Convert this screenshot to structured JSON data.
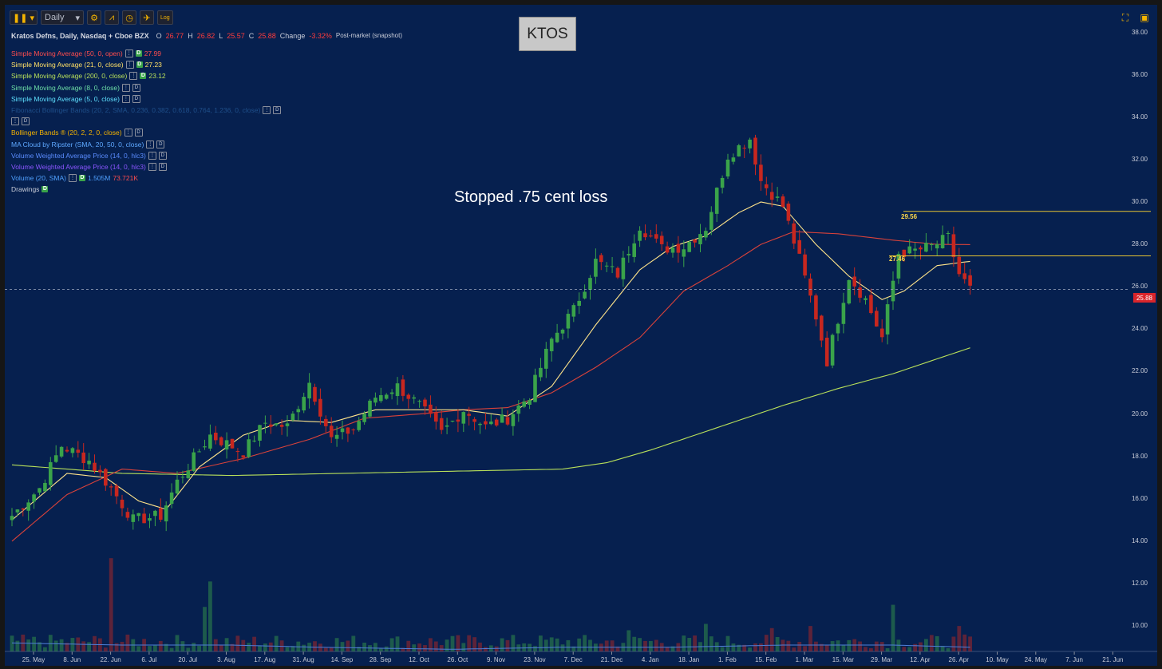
{
  "toolbar": {
    "period": "Daily",
    "dropdown_arrow": "▾",
    "log_label": "Log"
  },
  "chart_title": "KTOS",
  "header": {
    "name": "Kratos Defns, Daily, Nasdaq + Cboe BZX",
    "o_label": "O",
    "o_value": "26.77",
    "h_label": "H",
    "h_value": "26.82",
    "l_label": "L",
    "l_value": "25.57",
    "c_label": "C",
    "c_value": "25.88",
    "change_label": "Change",
    "change_value": "-3.32%",
    "session": "Post-market (snapshot)"
  },
  "indicators": [
    {
      "label": "Simple Moving Average (50, 0, open)",
      "color": "#ff4d4d",
      "value": "27.99",
      "value_color": "#ff4d4d",
      "d_on": true
    },
    {
      "label": "Simple Moving Average (21, 0, close)",
      "color": "#ffe066",
      "value": "27.23",
      "value_color": "#ffe066",
      "d_on": true
    },
    {
      "label": "Simple Moving Average (200, 0, close)",
      "color": "#b8e05a",
      "value": "23.12",
      "value_color": "#b8e05a",
      "d_on": true
    },
    {
      "label": "Simple Moving Average (8, 0, close)",
      "color": "#6ee0a8",
      "value": "",
      "value_color": "#6ee0a8",
      "d_on": false
    },
    {
      "label": "Simple Moving Average (5, 0, close)",
      "color": "#5ee0ff",
      "value": "",
      "value_color": "#5ee0ff",
      "d_on": false
    },
    {
      "label": "Fibonacci Bollinger Bands (20, 2, SMA, 0.236, 0.382, 0.618, 0.764, 1.236, 0, close)",
      "color": "#1f4f8a",
      "value": "",
      "value_color": "#1f4f8a",
      "d_on": false
    },
    {
      "label": "",
      "color": "#1f4f8a",
      "value": "",
      "value_color": "#1f4f8a",
      "d_on": false
    },
    {
      "label": "Bollinger Bands ® (20, 2, 2, 0, close)",
      "color": "#f5b400",
      "value": "",
      "value_color": "#f5b400",
      "d_on": false
    },
    {
      "label": "MA Cloud by Ripster (SMA, 20, 50, 0, close)",
      "color": "#5ea8ff",
      "value": "",
      "value_color": "#5ea8ff",
      "d_on": false
    },
    {
      "label": "Volume Weighted Average Price (14, 0, hlc3)",
      "color": "#5a8cff",
      "value": "",
      "value_color": "#5a8cff",
      "d_on": false
    },
    {
      "label": "Volume Weighted Average Price (14, 0, hlc3)",
      "color": "#8a55ff",
      "value": "",
      "value_color": "#8a55ff",
      "d_on": false
    },
    {
      "label": "Volume (20, SMA)",
      "color": "#4fa0ff",
      "value": "1.505M",
      "value_color": "#4fa0ff",
      "value2": "73.721K",
      "value2_color": "#ff4d4d",
      "d_on": true
    },
    {
      "label": "Drawings",
      "color": "#c8ccd8",
      "value": "",
      "value_color": "#c8ccd8",
      "d_on": true,
      "drawings": true
    }
  ],
  "annotation": "Stopped .75 cent loss",
  "current_price": "25.88",
  "levels": [
    {
      "value": 29.56,
      "label": "29.56"
    },
    {
      "value": 27.46,
      "label": "27.46"
    }
  ],
  "colors": {
    "background": "#06204f",
    "up": "#3aa34a",
    "down": "#c7271f",
    "sma50": "#d9423a",
    "sma21": "#ffe48a",
    "sma200": "#b8e05a",
    "level": "#e8c432",
    "vol_avg": "#4f7fd8"
  },
  "chart_data": {
    "type": "candlestick",
    "title": "KTOS",
    "y_ticks": [
      "10.00",
      "12.00",
      "14.00",
      "16.00",
      "18.00",
      "20.00",
      "22.00",
      "24.00",
      "26.00",
      "28.00",
      "30.00",
      "32.00",
      "34.00",
      "36.00",
      "38.00"
    ],
    "x_ticks": [
      "25. May",
      "8. Jun",
      "22. Jun",
      "6. Jul",
      "20. Jul",
      "3. Aug",
      "17. Aug",
      "31. Aug",
      "14. Sep",
      "28. Sep",
      "12. Oct",
      "26. Oct",
      "9. Nov",
      "23. Nov",
      "7. Dec",
      "21. Dec",
      "4. Jan",
      "18. Jan",
      "1. Feb",
      "15. Feb",
      "1. Mar",
      "15. Mar",
      "29. Mar",
      "12. Apr",
      "26. Apr",
      "10. May",
      "24. May",
      "7. Jun",
      "21. Jun"
    ],
    "ylim": [
      8.8,
      39.0
    ],
    "close_path": [
      [
        0,
        15.2
      ],
      [
        5,
        16.5
      ],
      [
        9,
        18.5
      ],
      [
        14,
        17.8
      ],
      [
        18,
        16.5
      ],
      [
        22,
        15.0
      ],
      [
        27,
        15.2
      ],
      [
        30,
        16.8
      ],
      [
        36,
        19.0
      ],
      [
        42,
        18.2
      ],
      [
        46,
        19.6
      ],
      [
        50,
        19.4
      ],
      [
        54,
        21.5
      ],
      [
        58,
        18.8
      ],
      [
        62,
        19.3
      ],
      [
        66,
        20.8
      ],
      [
        70,
        21.3
      ],
      [
        74,
        20.4
      ],
      [
        78,
        19.1
      ],
      [
        82,
        20.2
      ],
      [
        86,
        19.4
      ],
      [
        90,
        19.8
      ],
      [
        94,
        20.9
      ],
      [
        98,
        23.5
      ],
      [
        102,
        24.9
      ],
      [
        106,
        27.2
      ],
      [
        110,
        26.6
      ],
      [
        114,
        28.9
      ],
      [
        118,
        27.8
      ],
      [
        122,
        27.9
      ],
      [
        126,
        28.8
      ],
      [
        130,
        32.2
      ],
      [
        134,
        33.0
      ],
      [
        136,
        31.0
      ],
      [
        140,
        29.8
      ],
      [
        143,
        27.3
      ],
      [
        146,
        24.6
      ],
      [
        148,
        22.5
      ],
      [
        152,
        26.5
      ],
      [
        155,
        25.4
      ],
      [
        158,
        23.6
      ],
      [
        161,
        27.6
      ],
      [
        164,
        27.7
      ],
      [
        167,
        27.9
      ],
      [
        170,
        28.3
      ],
      [
        172,
        26.6
      ],
      [
        174,
        25.88
      ]
    ],
    "sma21_path": [
      [
        0,
        15.0
      ],
      [
        10,
        17.2
      ],
      [
        17,
        17.0
      ],
      [
        23,
        15.9
      ],
      [
        28,
        15.5
      ],
      [
        34,
        17.5
      ],
      [
        42,
        19.0
      ],
      [
        50,
        19.7
      ],
      [
        58,
        19.6
      ],
      [
        66,
        20.2
      ],
      [
        74,
        20.2
      ],
      [
        82,
        20.2
      ],
      [
        90,
        19.9
      ],
      [
        98,
        21.3
      ],
      [
        106,
        24.2
      ],
      [
        114,
        26.8
      ],
      [
        120,
        27.9
      ],
      [
        126,
        28.4
      ],
      [
        132,
        29.5
      ],
      [
        136,
        30.0
      ],
      [
        140,
        29.8
      ],
      [
        146,
        28.0
      ],
      [
        152,
        26.5
      ],
      [
        158,
        25.4
      ],
      [
        162,
        25.8
      ],
      [
        168,
        27.0
      ],
      [
        174,
        27.2
      ]
    ],
    "sma50_path": [
      [
        0,
        14.0
      ],
      [
        10,
        16.2
      ],
      [
        20,
        17.4
      ],
      [
        30,
        17.2
      ],
      [
        42,
        17.9
      ],
      [
        54,
        18.8
      ],
      [
        64,
        19.8
      ],
      [
        74,
        20.0
      ],
      [
        82,
        20.2
      ],
      [
        90,
        20.3
      ],
      [
        98,
        21.0
      ],
      [
        106,
        22.2
      ],
      [
        114,
        23.6
      ],
      [
        122,
        25.8
      ],
      [
        130,
        27.0
      ],
      [
        136,
        28.0
      ],
      [
        142,
        28.6
      ],
      [
        150,
        28.5
      ],
      [
        160,
        28.2
      ],
      [
        168,
        28.0
      ],
      [
        174,
        27.99
      ]
    ],
    "sma200_path": [
      [
        0,
        17.6
      ],
      [
        20,
        17.2
      ],
      [
        40,
        17.1
      ],
      [
        60,
        17.2
      ],
      [
        80,
        17.3
      ],
      [
        100,
        17.4
      ],
      [
        108,
        17.7
      ],
      [
        116,
        18.3
      ],
      [
        124,
        19.0
      ],
      [
        132,
        19.7
      ],
      [
        140,
        20.4
      ],
      [
        150,
        21.2
      ],
      [
        160,
        21.9
      ],
      [
        168,
        22.6
      ],
      [
        174,
        23.12
      ]
    ],
    "volume_scale_max": 13.2,
    "volume_avg_path": [
      [
        0,
        9.2
      ],
      [
        20,
        9.1
      ],
      [
        40,
        9.1
      ],
      [
        55,
        9.0
      ],
      [
        80,
        8.9
      ],
      [
        100,
        9.0
      ],
      [
        120,
        9.0
      ],
      [
        140,
        9.1
      ],
      [
        160,
        9.1
      ],
      [
        174,
        9.0
      ]
    ],
    "volume_spikes": [
      [
        18,
        13.2
      ],
      [
        36,
        12.1
      ],
      [
        35,
        10.9
      ],
      [
        160,
        11.0
      ],
      [
        172,
        10.0
      ],
      [
        112,
        9.8
      ],
      [
        126,
        10.1
      ],
      [
        145,
        10.0
      ],
      [
        138,
        9.9
      ]
    ]
  }
}
